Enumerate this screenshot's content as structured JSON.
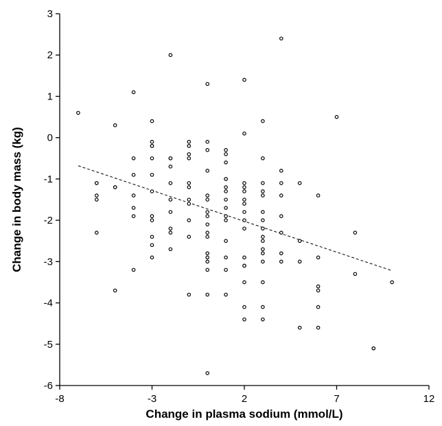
{
  "chart_data": {
    "type": "scatter",
    "xlabel": "Change in plasma sodium (mmol/L)",
    "ylabel": "Change in body mass (kg)",
    "xlim": [
      -8,
      12
    ],
    "ylim": [
      -6,
      3
    ],
    "xticks": [
      -8,
      -3,
      2,
      7,
      12
    ],
    "yticks": [
      3,
      2,
      1,
      0,
      -1,
      -2,
      -3,
      -4,
      -5,
      -6
    ],
    "grid": false,
    "legend": "none",
    "points": [
      [
        -7,
        0.6
      ],
      [
        -6,
        -1.1
      ],
      [
        -6,
        -1.1
      ],
      [
        -6,
        -1.4
      ],
      [
        -6,
        -1.5
      ],
      [
        -6,
        -2.3
      ],
      [
        -5,
        0.3
      ],
      [
        -5,
        -1.2
      ],
      [
        -5,
        -1.2
      ],
      [
        -5,
        -3.7
      ],
      [
        -4,
        1.1
      ],
      [
        -4,
        -0.5
      ],
      [
        -4,
        -0.9
      ],
      [
        -4,
        -1.4
      ],
      [
        -4,
        -1.7
      ],
      [
        -4,
        -1.9
      ],
      [
        -4,
        -3.2
      ],
      [
        -3,
        0.4
      ],
      [
        -3,
        -0.1
      ],
      [
        -3,
        -0.2
      ],
      [
        -3,
        -0.2
      ],
      [
        -3,
        -0.5
      ],
      [
        -3,
        -0.9
      ],
      [
        -3,
        -1.3
      ],
      [
        -3,
        -1.9
      ],
      [
        -3,
        -2.0
      ],
      [
        -3,
        -2.4
      ],
      [
        -3,
        -2.6
      ],
      [
        -3,
        -2.9
      ],
      [
        -2,
        2.0
      ],
      [
        -2,
        -0.5
      ],
      [
        -2,
        -0.5
      ],
      [
        -2,
        -0.7
      ],
      [
        -2,
        -1.1
      ],
      [
        -2,
        -1.5
      ],
      [
        -2,
        -1.8
      ],
      [
        -2,
        -2.2
      ],
      [
        -2,
        -2.3
      ],
      [
        -2,
        -2.7
      ],
      [
        -1,
        -0.1
      ],
      [
        -1,
        -0.2
      ],
      [
        -1,
        -0.4
      ],
      [
        -1,
        -0.5
      ],
      [
        -1,
        -1.1
      ],
      [
        -1,
        -1.2
      ],
      [
        -1,
        -1.5
      ],
      [
        -1,
        -1.6
      ],
      [
        -1,
        -2.0
      ],
      [
        -1,
        -2.4
      ],
      [
        -1,
        -3.8
      ],
      [
        0,
        1.3
      ],
      [
        0,
        -0.1
      ],
      [
        0,
        -0.3
      ],
      [
        0,
        -0.8
      ],
      [
        0,
        -1.4
      ],
      [
        0,
        -1.5
      ],
      [
        0,
        -1.8
      ],
      [
        0,
        -1.9
      ],
      [
        0,
        -2.1
      ],
      [
        0,
        -2.3
      ],
      [
        0,
        -2.4
      ],
      [
        0,
        -2.8
      ],
      [
        0,
        -2.9
      ],
      [
        0,
        -3.0
      ],
      [
        0,
        -3.2
      ],
      [
        0,
        -3.8
      ],
      [
        0,
        -5.7
      ],
      [
        1,
        -0.3
      ],
      [
        1,
        -0.4
      ],
      [
        1,
        -0.6
      ],
      [
        1,
        -1.0
      ],
      [
        1,
        -1.0
      ],
      [
        1,
        -1.2
      ],
      [
        1,
        -1.3
      ],
      [
        1,
        -1.5
      ],
      [
        1,
        -1.7
      ],
      [
        1,
        -1.9
      ],
      [
        1,
        -2.0
      ],
      [
        1,
        -2.5
      ],
      [
        1,
        -2.9
      ],
      [
        1,
        -3.2
      ],
      [
        1,
        -3.8
      ],
      [
        2,
        1.4
      ],
      [
        2,
        0.1
      ],
      [
        2,
        -1.1
      ],
      [
        2,
        -1.2
      ],
      [
        2,
        -1.3
      ],
      [
        2,
        -1.5
      ],
      [
        2,
        -1.6
      ],
      [
        2,
        -1.8
      ],
      [
        2,
        -2.0
      ],
      [
        2,
        -2.2
      ],
      [
        2,
        -2.9
      ],
      [
        2,
        -3.1
      ],
      [
        2,
        -3.1
      ],
      [
        2,
        -3.5
      ],
      [
        2,
        -4.1
      ],
      [
        2,
        -4.4
      ],
      [
        3,
        0.4
      ],
      [
        3,
        -0.5
      ],
      [
        3,
        -1.1
      ],
      [
        3,
        -1.3
      ],
      [
        3,
        -1.4
      ],
      [
        3,
        -1.8
      ],
      [
        3,
        -2.0
      ],
      [
        3,
        -2.2
      ],
      [
        3,
        -2.4
      ],
      [
        3,
        -2.5
      ],
      [
        3,
        -2.7
      ],
      [
        3,
        -2.8
      ],
      [
        3,
        -3.0
      ],
      [
        3,
        -3.5
      ],
      [
        3,
        -4.1
      ],
      [
        3,
        -4.4
      ],
      [
        4,
        2.4
      ],
      [
        4,
        -0.8
      ],
      [
        4,
        -1.1
      ],
      [
        4,
        -1.4
      ],
      [
        4,
        -1.9
      ],
      [
        4,
        -2.3
      ],
      [
        4,
        -2.8
      ],
      [
        4,
        -3.0
      ],
      [
        5,
        -1.1
      ],
      [
        5,
        -2.5
      ],
      [
        5,
        -3.0
      ],
      [
        5,
        -4.6
      ],
      [
        6,
        -1.4
      ],
      [
        6,
        -2.9
      ],
      [
        6,
        -3.6
      ],
      [
        6,
        -3.7
      ],
      [
        6,
        -4.1
      ],
      [
        6,
        -4.6
      ],
      [
        7,
        0.5
      ],
      [
        8,
        -2.3
      ],
      [
        8,
        -3.3
      ],
      [
        9,
        -5.1
      ],
      [
        9,
        -5.1
      ],
      [
        10,
        -3.5
      ]
    ],
    "trendline": {
      "x": [
        -7,
        10
      ],
      "y": [
        -0.68,
        -3.22
      ],
      "style": "dashed"
    }
  }
}
